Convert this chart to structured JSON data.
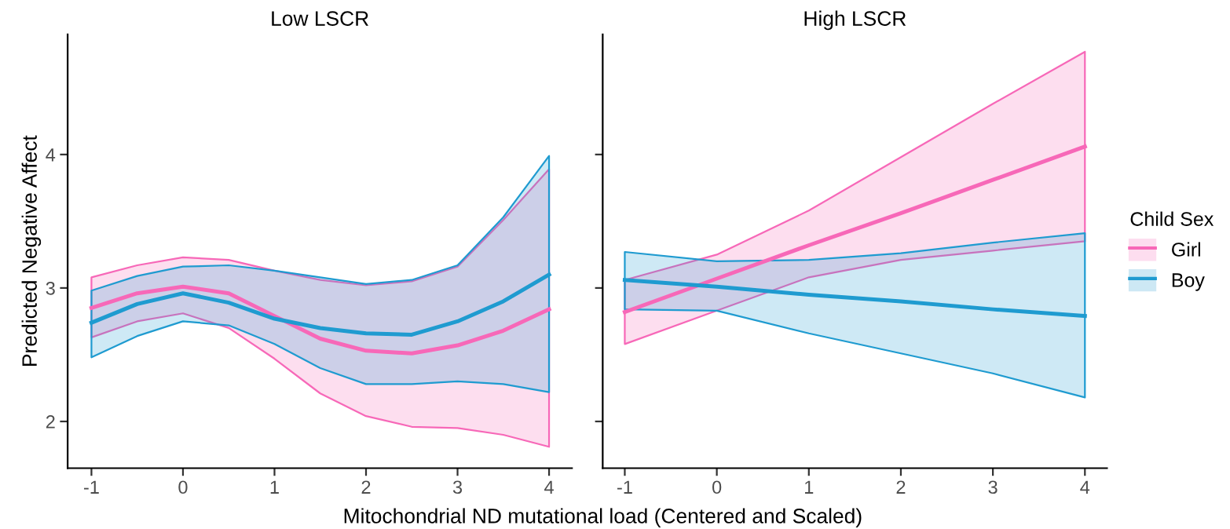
{
  "chart_data": [
    {
      "type": "line",
      "title": "Low LSCR",
      "ylabel": "Predicted Negative Affect",
      "xlabel": "Mitochondrial ND mutational load (Centered and Scaled)",
      "x": [
        -1,
        -0.5,
        0,
        0.5,
        1,
        1.5,
        2,
        2.5,
        3,
        3.5,
        4
      ],
      "xlim": [
        -1.26,
        4.25
      ],
      "xticks": [
        -1,
        0,
        1,
        2,
        3,
        4
      ],
      "ylim": [
        1.65,
        4.9
      ],
      "yticks": [
        2,
        3,
        4
      ],
      "grid": false,
      "legend": false,
      "series": [
        {
          "color": "#f768b8",
          "values": [
            2.85,
            2.96,
            3.01,
            2.96,
            2.79,
            2.62,
            2.53,
            2.51,
            2.57,
            2.68,
            2.84
          ],
          "lower": [
            2.63,
            2.75,
            2.81,
            2.7,
            2.47,
            2.21,
            2.04,
            1.96,
            1.95,
            1.9,
            1.81
          ],
          "upper": [
            3.08,
            3.17,
            3.23,
            3.21,
            3.13,
            3.06,
            3.02,
            3.05,
            3.16,
            3.51,
            3.89
          ]
        },
        {
          "color": "#1f9bd0",
          "values": [
            2.74,
            2.88,
            2.96,
            2.89,
            2.77,
            2.7,
            2.66,
            2.65,
            2.75,
            2.9,
            3.1
          ],
          "lower": [
            2.48,
            2.64,
            2.75,
            2.72,
            2.58,
            2.4,
            2.28,
            2.28,
            2.3,
            2.28,
            2.22
          ],
          "upper": [
            2.98,
            3.09,
            3.16,
            3.17,
            3.13,
            3.08,
            3.03,
            3.06,
            3.17,
            3.53,
            3.99
          ]
        }
      ]
    },
    {
      "type": "line",
      "title": "High LSCR",
      "legend_title": "Child Sex",
      "legend": "right",
      "tick_labels": "x",
      "x": [
        -1,
        0,
        1,
        2,
        3,
        4
      ],
      "xlim": [
        -1.24,
        4.24
      ],
      "xticks": [
        -1,
        0,
        1,
        2,
        3,
        4
      ],
      "ylim": [
        1.65,
        4.9
      ],
      "yticks": [
        2,
        3,
        4
      ],
      "grid": false,
      "series": [
        {
          "name": "Girl",
          "color": "#f768b8",
          "values": [
            2.82,
            3.07,
            3.32,
            3.56,
            3.81,
            4.06
          ],
          "lower": [
            2.58,
            2.83,
            3.08,
            3.21,
            3.28,
            3.35
          ],
          "upper": [
            3.06,
            3.25,
            3.58,
            3.98,
            4.38,
            4.77
          ]
        },
        {
          "name": "Boy",
          "color": "#1f9bd0",
          "values": [
            3.06,
            3.01,
            2.95,
            2.9,
            2.84,
            2.79
          ],
          "lower": [
            2.84,
            2.83,
            2.66,
            2.51,
            2.36,
            2.18
          ],
          "upper": [
            3.27,
            3.2,
            3.21,
            3.26,
            3.34,
            3.41
          ]
        }
      ]
    }
  ]
}
